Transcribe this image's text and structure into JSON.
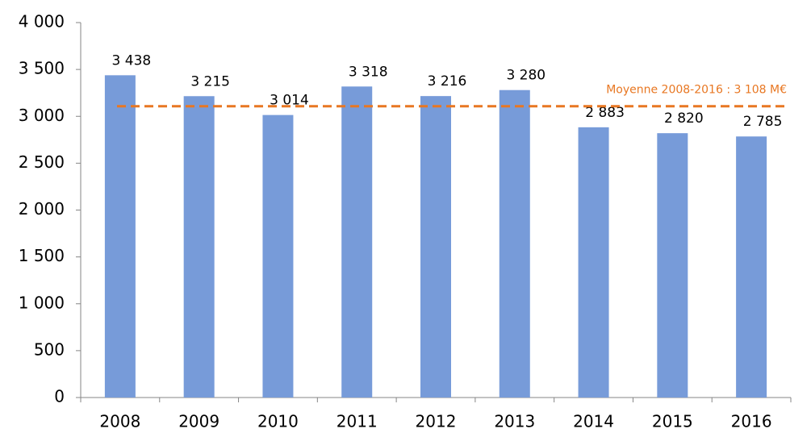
{
  "chart_data": {
    "type": "bar",
    "categories": [
      "2008",
      "2009",
      "2010",
      "2011",
      "2012",
      "2013",
      "2014",
      "2015",
      "2016"
    ],
    "values": [
      3438,
      3215,
      3014,
      3318,
      3216,
      3280,
      2883,
      2820,
      2785
    ],
    "value_labels": [
      "3 438",
      "3 215",
      "3 014",
      "3 318",
      "3 216",
      "3 280",
      "2 883",
      "2 820",
      "2 785"
    ],
    "color": "#779bd9",
    "ylim": [
      0,
      4000
    ],
    "yticks": [
      0,
      500,
      {
        "value": 1000,
        "label": "1 000"
      },
      {
        "value": 1500,
        "label": "1 500"
      },
      {
        "value": 2000,
        "label": "2 000"
      },
      {
        "value": 2500,
        "label": "2 500"
      },
      {
        "value": 3000,
        "label": "3 000"
      },
      {
        "value": 3500,
        "label": "3 500"
      },
      {
        "value": 4000,
        "label": "4 000"
      }
    ],
    "average": {
      "value": 3108,
      "label": "Moyenne 2008-2016 : 3 108 M€",
      "color": "#e87722"
    }
  }
}
